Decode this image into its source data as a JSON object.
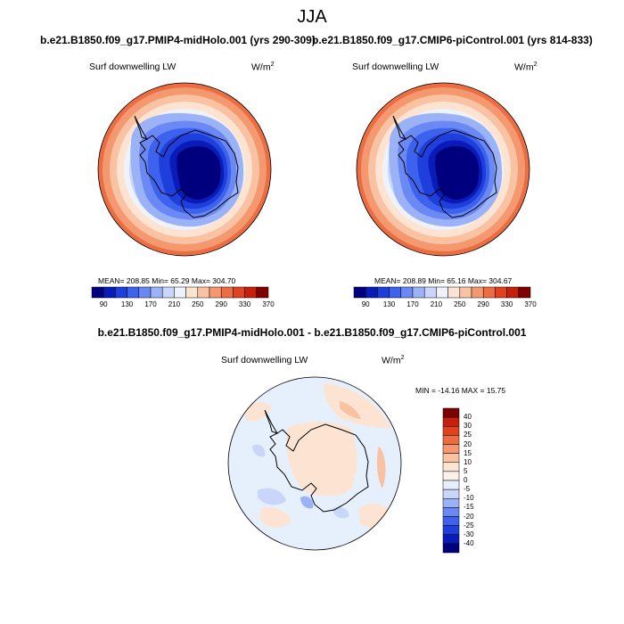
{
  "header": {
    "title": "JJA",
    "left_run": "b.e21.B1850.f09_g17.PMIP4-midHolo.001 (yrs 290-309)",
    "right_run": "b.e21.B1850.f09_g17.CMIP6-piControl.001 (yrs 814-833)",
    "diff_title": "b.e21.B1850.f09_g17.PMIP4-midHolo.001 - b.e21.B1850.f09_g17.CMIP6-piControl.001"
  },
  "panels": [
    {
      "variable": "Surf downwelling LW",
      "units": "W/m",
      "units_exp": "2",
      "stats": "MEAN= 208.85  Min=  65.29  Max= 304.70"
    },
    {
      "variable": "Surf downwelling LW",
      "units": "W/m",
      "units_exp": "2",
      "stats": "MEAN= 208.89  Min=  65.16  Max= 304.67"
    }
  ],
  "abs_colorbar": {
    "labels": [
      "90",
      "130",
      "170",
      "210",
      "250",
      "290",
      "330",
      "370"
    ],
    "colors": [
      "#00007f",
      "#0a1cb8",
      "#1f3fdc",
      "#3d62ee",
      "#6a89f4",
      "#9bb2f7",
      "#c9d6f9",
      "#eef2fb",
      "#fde4d2",
      "#f9c2a2",
      "#f4996f",
      "#ed6d43",
      "#e0421f",
      "#c4200b",
      "#7f0000"
    ]
  },
  "diff_panel": {
    "variable": "Surf downwelling LW",
    "units": "W/m",
    "units_exp": "2",
    "stats": "MIN = -14.16 MAX =  15.75"
  },
  "diff_colorbar": {
    "labels": [
      "40",
      "30",
      "25",
      "20",
      "15",
      "10",
      "5",
      "0",
      "-5",
      "-10",
      "-15",
      "-20",
      "-25",
      "-30",
      "-40"
    ],
    "colors": [
      "#7f0000",
      "#c4200b",
      "#e0421f",
      "#ed6d43",
      "#f4996f",
      "#f9c2a2",
      "#fde4d2",
      "#fdf1ea",
      "#e6effc",
      "#c9d6f9",
      "#9bb2f7",
      "#6a89f4",
      "#3d62ee",
      "#1f3fdc",
      "#0a1cb8",
      "#00007f"
    ]
  }
}
